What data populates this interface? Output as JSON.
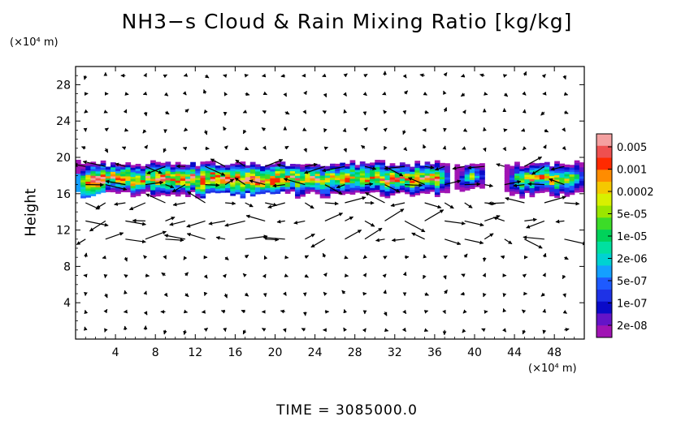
{
  "title": "NH3−s Cloud & Rain Mixing Ratio [kg/kg]",
  "y_unit": "(×10⁴ m)",
  "x_unit": "(×10⁴ m)",
  "ylabel": "Height",
  "time_label": "TIME  =  3085000.0",
  "chart_data": {
    "type": "heatmap",
    "title": "NH3−s Cloud & Rain Mixing Ratio [kg/kg]",
    "xlabel": "",
    "ylabel": "Height",
    "x_unit": "(×10⁴ m)",
    "y_unit": "(×10⁴ m)",
    "xlim": [
      0,
      51
    ],
    "ylim": [
      0,
      30
    ],
    "x_ticks": [
      4,
      8,
      12,
      16,
      20,
      24,
      28,
      32,
      36,
      40,
      44,
      48
    ],
    "y_ticks": [
      4,
      8,
      12,
      16,
      20,
      24,
      28
    ],
    "grid": false,
    "colorbar": {
      "position": "right",
      "labels": [
        "0.005",
        "0.001",
        "0.0002",
        "5e-05",
        "1e-05",
        "2e-06",
        "5e-07",
        "1e-07",
        "2e-08"
      ],
      "colors": [
        "#f4a0a0",
        "#ee5050",
        "#ff2a00",
        "#ff8c00",
        "#f5c800",
        "#d8f000",
        "#9ae600",
        "#3cdc28",
        "#00d25a",
        "#00e0a0",
        "#00d2d2",
        "#14a0ff",
        "#1e5aff",
        "#1e32e6",
        "#0a0ac8",
        "#6414c8",
        "#a014b4"
      ]
    },
    "cloud_layer": {
      "bottom_approx": 15.5,
      "top_approx": 19.5,
      "segments": [
        {
          "x_start": 0,
          "x_end": 37.5,
          "peak": "0.005"
        },
        {
          "x_start": 38,
          "x_end": 41,
          "peak": "0.0002"
        },
        {
          "x_start": 43,
          "x_end": 51,
          "peak": "0.001"
        }
      ]
    },
    "overlay": "wind vectors (arrows)",
    "time": "3085000.0"
  }
}
